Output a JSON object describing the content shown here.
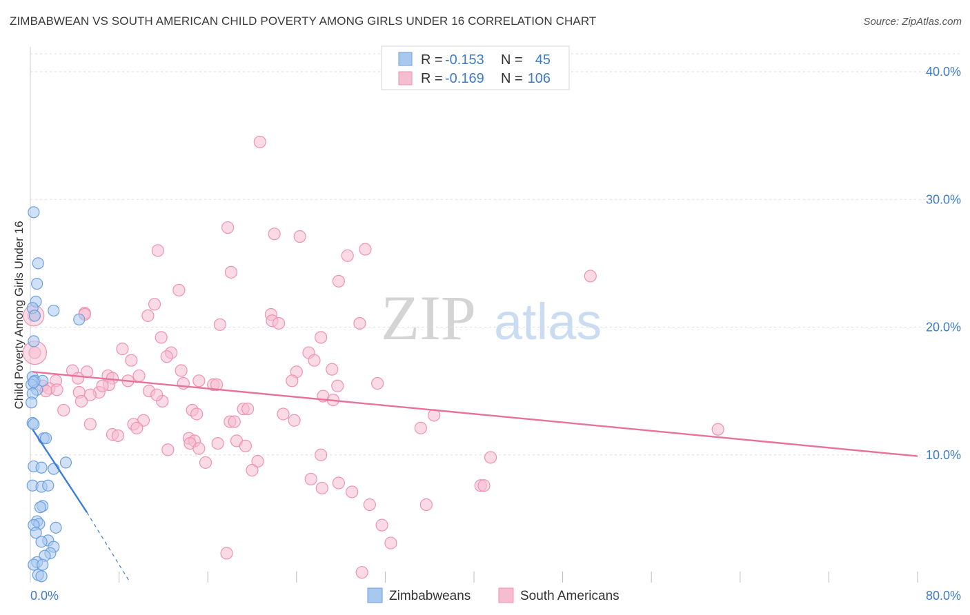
{
  "title": "ZIMBABWEAN VS SOUTH AMERICAN CHILD POVERTY AMONG GIRLS UNDER 16 CORRELATION CHART",
  "source": "Source: ZipAtlas.com",
  "watermark": {
    "zip": "ZIP",
    "atlas": "atlas"
  },
  "legend": {
    "r_label": "R =",
    "n_label": "N =",
    "rows": [
      {
        "r": "-0.153",
        "n": "45"
      },
      {
        "r": "-0.169",
        "n": "106"
      }
    ]
  },
  "colors": {
    "zimbabweans_fill": "#a9c8f0",
    "zimbabweans_stroke": "#6a9fe0",
    "zimbabweans_line": "#3b7dd8",
    "south_americans_fill": "#f6bcd0",
    "south_americans_stroke": "#ef92b2",
    "south_americans_line": "#e8719b",
    "tick_label": "#3d7cc9"
  },
  "chart_data": {
    "type": "scatter",
    "title": "ZIMBABWEAN VS SOUTH AMERICAN CHILD POVERTY AMONG GIRLS UNDER 16 CORRELATION CHART",
    "xlabel": "",
    "ylabel": "Child Poverty Among Girls Under 16",
    "xlim": [
      0,
      80
    ],
    "ylim": [
      0,
      42
    ],
    "x_tick_labels": [
      "0.0%",
      "80.0%"
    ],
    "y_ticks": [
      10,
      20,
      30,
      40
    ],
    "y_tick_labels": [
      "10.0%",
      "20.0%",
      "30.0%",
      "40.0%"
    ],
    "grid": true,
    "legend_position": "top-center",
    "series": [
      {
        "name": "Zimbabweans",
        "points": [
          [
            0.3,
            29.0
          ],
          [
            0.7,
            25.0
          ],
          [
            0.6,
            23.4
          ],
          [
            0.5,
            22.0
          ],
          [
            0.2,
            21.5
          ],
          [
            2.1,
            21.3
          ],
          [
            0.4,
            20.9
          ],
          [
            4.4,
            20.6
          ],
          [
            0.3,
            18.9
          ],
          [
            0.2,
            16.1
          ],
          [
            0.4,
            15.8
          ],
          [
            1.1,
            15.8
          ],
          [
            0.1,
            15.5
          ],
          [
            0.6,
            15.1
          ],
          [
            0.2,
            14.8
          ],
          [
            0.1,
            14.1
          ],
          [
            0.2,
            12.5
          ],
          [
            0.3,
            12.4
          ],
          [
            1.2,
            11.3
          ],
          [
            1.4,
            11.3
          ],
          [
            3.2,
            9.4
          ],
          [
            0.3,
            9.1
          ],
          [
            1.0,
            9.0
          ],
          [
            2.1,
            8.9
          ],
          [
            0.2,
            7.6
          ],
          [
            1.0,
            7.5
          ],
          [
            1.6,
            7.6
          ],
          [
            1.1,
            6.0
          ],
          [
            0.9,
            5.9
          ],
          [
            0.6,
            4.8
          ],
          [
            0.8,
            4.6
          ],
          [
            0.3,
            4.5
          ],
          [
            2.3,
            4.3
          ],
          [
            0.5,
            3.9
          ],
          [
            1.6,
            3.3
          ],
          [
            1.0,
            3.2
          ],
          [
            2.1,
            2.8
          ],
          [
            1.8,
            2.3
          ],
          [
            1.3,
            2.1
          ],
          [
            0.6,
            1.6
          ],
          [
            0.3,
            1.4
          ],
          [
            1.1,
            1.4
          ],
          [
            0.7,
            0.6
          ],
          [
            1.0,
            0.5
          ],
          [
            0.3,
            15.7
          ]
        ],
        "trend": {
          "x0": 0.2,
          "y0": 12.0,
          "x1": 5.1,
          "y1": 5.5,
          "dash_x1": 9.0,
          "dash_y1": 0.0
        }
      },
      {
        "name": "South Americans",
        "points": [
          [
            20.7,
            34.5
          ],
          [
            17.8,
            27.8
          ],
          [
            22.0,
            27.3
          ],
          [
            24.3,
            27.1
          ],
          [
            11.5,
            26.0
          ],
          [
            30.2,
            26.1
          ],
          [
            28.6,
            25.6
          ],
          [
            18.1,
            24.3
          ],
          [
            50.5,
            24.0
          ],
          [
            27.8,
            23.6
          ],
          [
            13.4,
            22.9
          ],
          [
            11.2,
            21.8
          ],
          [
            4.9,
            21.1
          ],
          [
            21.7,
            21.0
          ],
          [
            10.6,
            20.9
          ],
          [
            0.3,
            20.9
          ],
          [
            21.8,
            20.5
          ],
          [
            22.4,
            20.3
          ],
          [
            17.1,
            20.2
          ],
          [
            29.7,
            20.3
          ],
          [
            26.2,
            19.2
          ],
          [
            11.8,
            19.2
          ],
          [
            8.3,
            18.3
          ],
          [
            12.7,
            18.0
          ],
          [
            0.4,
            18.0
          ],
          [
            25.1,
            18.0
          ],
          [
            12.3,
            17.7
          ],
          [
            25.6,
            17.4
          ],
          [
            9.1,
            17.4
          ],
          [
            27.2,
            16.7
          ],
          [
            3.8,
            16.6
          ],
          [
            5.1,
            16.5
          ],
          [
            13.6,
            16.6
          ],
          [
            24.0,
            16.5
          ],
          [
            9.8,
            16.2
          ],
          [
            7.0,
            16.2
          ],
          [
            4.3,
            16.0
          ],
          [
            7.4,
            16.0
          ],
          [
            8.8,
            15.8
          ],
          [
            2.3,
            15.8
          ],
          [
            23.6,
            15.8
          ],
          [
            31.3,
            15.6
          ],
          [
            13.8,
            15.6
          ],
          [
            16.5,
            15.5
          ],
          [
            16.8,
            15.5
          ],
          [
            7.1,
            15.5
          ],
          [
            1.1,
            15.4
          ],
          [
            1.7,
            15.2
          ],
          [
            2.4,
            15.1
          ],
          [
            1.4,
            15.0
          ],
          [
            10.7,
            15.0
          ],
          [
            4.4,
            14.9
          ],
          [
            6.2,
            14.9
          ],
          [
            5.4,
            14.7
          ],
          [
            26.4,
            14.6
          ],
          [
            27.3,
            14.3
          ],
          [
            4.6,
            14.2
          ],
          [
            11.9,
            14.2
          ],
          [
            3.0,
            13.5
          ],
          [
            14.6,
            13.5
          ],
          [
            19.2,
            13.6
          ],
          [
            19.6,
            13.6
          ],
          [
            15.0,
            13.2
          ],
          [
            22.8,
            13.2
          ],
          [
            36.4,
            13.1
          ],
          [
            10.2,
            12.7
          ],
          [
            18.0,
            12.6
          ],
          [
            23.8,
            12.7
          ],
          [
            5.4,
            12.4
          ],
          [
            9.3,
            12.4
          ],
          [
            9.6,
            12.1
          ],
          [
            35.2,
            12.1
          ],
          [
            62.0,
            12.0
          ],
          [
            7.4,
            11.6
          ],
          [
            7.9,
            11.5
          ],
          [
            14.3,
            11.3
          ],
          [
            14.8,
            11.1
          ],
          [
            18.6,
            11.1
          ],
          [
            16.9,
            10.9
          ],
          [
            14.4,
            10.9
          ],
          [
            19.4,
            10.7
          ],
          [
            12.4,
            10.4
          ],
          [
            15.2,
            10.5
          ],
          [
            26.2,
            10.0
          ],
          [
            41.5,
            9.8
          ],
          [
            15.8,
            9.4
          ],
          [
            20.5,
            9.5
          ],
          [
            20.0,
            8.8
          ],
          [
            25.3,
            8.1
          ],
          [
            27.8,
            7.8
          ],
          [
            26.3,
            7.4
          ],
          [
            40.6,
            7.6
          ],
          [
            40.9,
            7.6
          ],
          [
            29.0,
            7.1
          ],
          [
            30.6,
            6.1
          ],
          [
            35.7,
            6.1
          ],
          [
            31.7,
            4.5
          ],
          [
            32.5,
            3.1
          ],
          [
            17.7,
            2.3
          ],
          [
            29.9,
            0.8
          ],
          [
            4.9,
            21.0
          ],
          [
            6.5,
            15.4
          ],
          [
            18.4,
            12.6
          ],
          [
            27.7,
            15.4
          ],
          [
            15.2,
            15.8
          ],
          [
            11.4,
            14.7
          ]
        ],
        "trend": {
          "x0": 0.2,
          "y0": 16.5,
          "x1": 80.0,
          "y1": 9.9
        }
      }
    ]
  },
  "bottom_legend": [
    "Zimbabweans",
    "South Americans"
  ]
}
